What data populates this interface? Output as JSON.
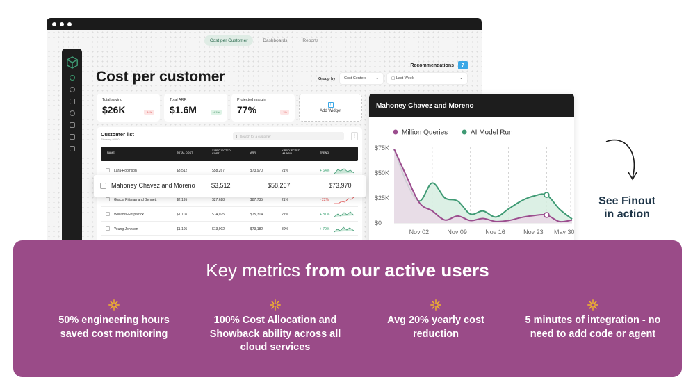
{
  "app": {
    "nav_tabs": [
      {
        "label": "Cost per Customer",
        "active": true
      },
      {
        "label": "Dashboards",
        "active": false
      },
      {
        "label": "Reports",
        "active": false
      }
    ],
    "recommendations_label": "Recommendations",
    "recommendations_count": "7",
    "page_title": "Cost per customer",
    "group_by_label": "Group by",
    "group_by_value": "Cost Centers",
    "date_range_value": "Last Week",
    "stats": [
      {
        "label": "Total saving",
        "value": "$26K",
        "chip": "-34%",
        "trend": "down"
      },
      {
        "label": "Total ARR",
        "value": "$1.6M",
        "chip": "+91%",
        "trend": "up"
      },
      {
        "label": "Projected margin",
        "value": "77%",
        "chip": "-1%",
        "trend": "down"
      }
    ],
    "add_widget_label": "Add Widget",
    "customer_list": {
      "title": "Customer list",
      "subtitle": "Showing 9/500",
      "search_placeholder": "Search for a customer",
      "columns": [
        "NAME",
        "TOTAL COST",
        "Y/PROJECTED COST",
        "ARR",
        "Y/PROJECTED MARGIN",
        "TREND"
      ],
      "rows": [
        {
          "name": "Lara-Robinson",
          "total_cost": "$3,512",
          "projected_cost": "$58,267",
          "arr": "$73,970",
          "margin": "21%",
          "trend": "+ 64%",
          "dir": "up"
        },
        {
          "name": "Garcia Pittman and Bennett",
          "total_cost": "$2,195",
          "projected_cost": "$27,628",
          "arr": "$87,735",
          "margin": "21%",
          "trend": "- 22%",
          "dir": "down"
        },
        {
          "name": "Williams-Fitzpatrick",
          "total_cost": "$1,118",
          "projected_cost": "$14,075",
          "arr": "$75,314",
          "margin": "21%",
          "trend": "+ 81%",
          "dir": "up"
        },
        {
          "name": "Young-Johnson",
          "total_cost": "$1,105",
          "projected_cost": "$13,902",
          "arr": "$73,182",
          "margin": "80%",
          "trend": "+ 79%",
          "dir": "up"
        }
      ],
      "highlighted_row": {
        "name": "Mahoney Chavez and Moreno",
        "total_cost": "$3,512",
        "projected_cost": "$58,267",
        "arr": "$73,970"
      }
    }
  },
  "chart_card_title": "Mahoney Chavez and Moreno",
  "chart_data": {
    "type": "area",
    "title": "Mahoney Chavez and Moreno",
    "x_ticks": [
      "Nov 02",
      "Nov 09",
      "Nov 16",
      "Nov 23",
      "May 30"
    ],
    "y_ticks": [
      "$0",
      "$25K",
      "$50K",
      "$75K"
    ],
    "ylim": [
      0,
      75000
    ],
    "x": [
      0,
      1,
      2,
      3,
      4,
      5,
      6,
      7,
      8,
      9,
      10,
      11,
      12,
      13,
      14
    ],
    "series": [
      {
        "name": "Million Queries",
        "color": "#9b4d8e",
        "values": [
          74000,
          46000,
          20000,
          12000,
          3000,
          7000,
          2500,
          4500,
          1500,
          2500,
          5500,
          7500,
          8000,
          1500,
          3000
        ]
      },
      {
        "name": "AI Model Run",
        "color": "#3f9a74",
        "values": [
          74000,
          40000,
          22000,
          40000,
          25000,
          22000,
          9000,
          12000,
          6000,
          14000,
          22000,
          27000,
          28000,
          14000,
          4000
        ]
      }
    ],
    "grid": "dashed vertical",
    "legend": "top-left"
  },
  "cta": {
    "text": "See Finout in action"
  },
  "metrics": {
    "title_light": "Key metrics",
    "title_bold": "from our active users",
    "items": [
      {
        "text": "50% engineering hours saved cost monitoring"
      },
      {
        "text": "100% Cost Allocation and Showback ability across all cloud services"
      },
      {
        "text": "Avg 20% yearly cost reduction"
      },
      {
        "text": "5 minutes of integration - no need to add code or agent"
      }
    ]
  },
  "colors": {
    "accent_purple": "#9a4b88",
    "accent_green": "#3f9a74",
    "dark": "#1d1d1d"
  }
}
